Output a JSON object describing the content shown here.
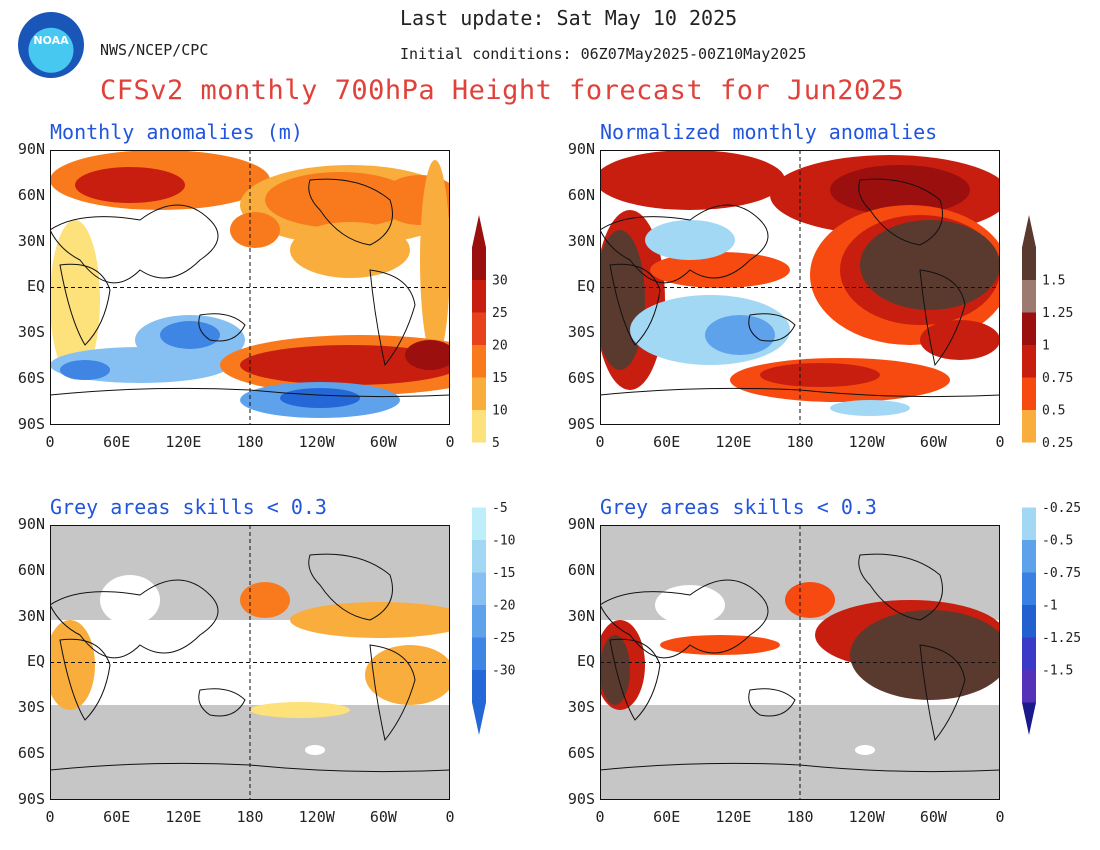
{
  "header": {
    "last_update": "Last update: Sat May 10 2025",
    "agency": "NWS/NCEP/CPC",
    "initial_conditions": "Initial conditions: 06Z07May2025-00Z10May2025",
    "title": "CFSv2 monthly 700hPa Height forecast for Jun2025",
    "logo_text": "NOAA"
  },
  "panels": {
    "top_left_title": "Monthly anomalies (m)",
    "top_right_title": "Normalized monthly anomalies",
    "bottom_left_title": "Grey areas skills < 0.3",
    "bottom_right_title": "Grey areas skills < 0.3"
  },
  "axes": {
    "lat_labels": [
      "90N",
      "60N",
      "30N",
      "EQ",
      "30S",
      "60S",
      "90S"
    ],
    "lon_labels": [
      "0",
      "60E",
      "120E",
      "180",
      "120W",
      "60W",
      "0"
    ]
  },
  "colorbar_left": {
    "positive_labels": [
      "30",
      "25",
      "20",
      "15",
      "10",
      "5"
    ],
    "negative_labels": [
      "-5",
      "-10",
      "-15",
      "-20",
      "-25",
      "-30"
    ],
    "positive_colors": [
      "#9b0f0f",
      "#c81e0f",
      "#e8421c",
      "#f97a1c",
      "#f9ad3c",
      "#fde17a"
    ],
    "negative_colors": [
      "#bdeefa",
      "#a3d8f5",
      "#86c0f2",
      "#5ea2ec",
      "#3f85e4",
      "#2468d8"
    ]
  },
  "colorbar_right": {
    "positive_labels": [
      "1.5",
      "1.25",
      "1",
      "0.75",
      "0.5",
      "0.25"
    ],
    "negative_labels": [
      "-0.25",
      "-0.5",
      "-0.75",
      "-1",
      "-1.25",
      "-1.5"
    ],
    "positive_colors": [
      "#5a3a2e",
      "#9c7a70",
      "#9b0f0f",
      "#c81e0f",
      "#f64a10",
      "#f9ad3c"
    ],
    "negative_colors": [
      "#a3d8f5",
      "#5ea2ec",
      "#3a80e2",
      "#2360cf",
      "#3a3ac8",
      "#5530b8"
    ]
  },
  "colors": {
    "title": "#e0413a",
    "panel_title": "#2255dd",
    "skill_mask": "#c6c6c6",
    "land_outline": "#111111"
  }
}
